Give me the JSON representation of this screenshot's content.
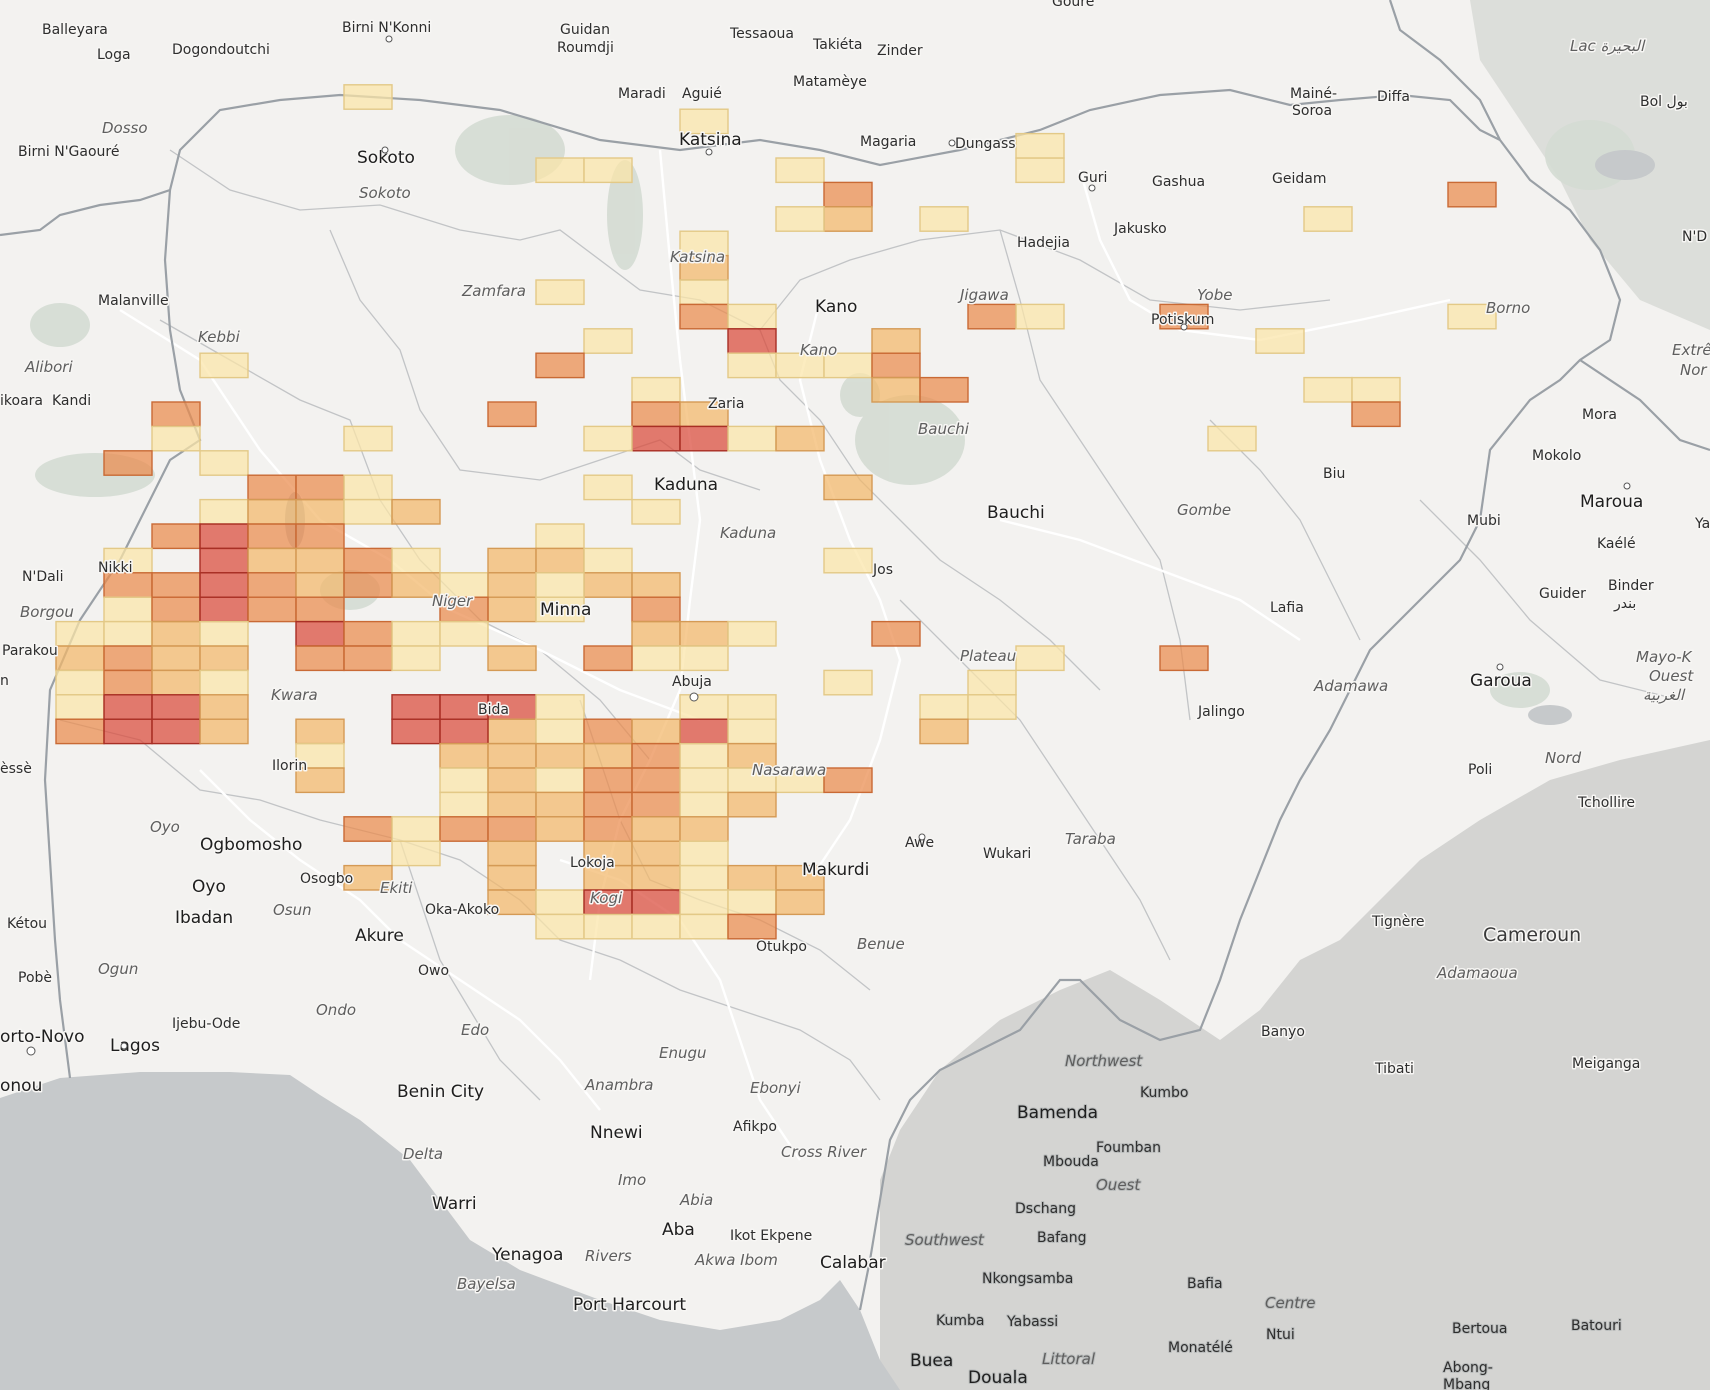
{
  "map": {
    "colors": {
      "land": "#f3f2f0",
      "ocean": "#c6c9cb",
      "terrain": "#b9bcba",
      "park": "#d4dbd3",
      "country_border": "#9aa0a6",
      "admin_border": "#c2c4c6",
      "road": "#ffffff",
      "bin_low": "#fbe5a8",
      "bin_mid": "#f3b769",
      "bin_high": "#ea8a4c",
      "bin_max": "#d9493a"
    },
    "labels": {
      "balleyara": "Balleyara",
      "birni_nkonni": "Birni N'Konni",
      "guidan_roumdji_1": "Guidan",
      "guidan_roumdji_2": "Roumdji",
      "tessaoua": "Tessaoua",
      "takieta": "Takiéta",
      "zinder": "Zinder",
      "goure": "Gouré",
      "lac": "Lac البحيرة",
      "loga": "Loga",
      "dogondoutchi": "Dogondoutchi",
      "maradi": "Maradi",
      "aguie": "Aguié",
      "matameye": "Matamèye",
      "maine_soroa_1": "Mainé-",
      "maine_soroa_2": "Soroa",
      "diffa": "Diffa",
      "bol": "Bol بول",
      "dosso": "Dosso",
      "birni_ngaoure": "Birni N'Gaouré",
      "sokoto_city": "Sokoto",
      "sokoto_state": "Sokoto",
      "katsina_city": "Katsina",
      "magaria": "Magaria",
      "dungass": "Dungass",
      "guri": "Guri",
      "gashua": "Gashua",
      "geidam": "Geidam",
      "jakusko": "Jakusko",
      "hadejia": "Hadejia",
      "katsina_state": "Katsina",
      "zamfara": "Zamfara",
      "kano_city": "Kano",
      "kano_state": "Kano",
      "jigawa": "Jigawa",
      "yobe": "Yobe",
      "potiskum": "Potiskum",
      "borno": "Borno",
      "ndj": "N'D",
      "malanville": "Malanville",
      "kebbi": "Kebbi",
      "alibori": "Alibori",
      "kandi": "Kandi",
      "koara": "ikoara",
      "extreme": "Extrê",
      "nord_cut": "Nor",
      "zaria": "Zaria",
      "bauchi_state": "Bauchi",
      "mora": "Mora",
      "mokolo": "Mokolo",
      "biu": "Biu",
      "maroua": "Maroua",
      "kaele": "Kaélé",
      "kaduna_city": "Kaduna",
      "kaduna_state": "Kaduna",
      "bauchi_city": "Bauchi",
      "gombe": "Gombe",
      "mubi": "Mubi",
      "ya": "Ya",
      "ndali": "N'Dali",
      "nikki": "Nikki",
      "borgou": "Borgou",
      "jos": "Jos",
      "lafia": "Lafia",
      "binder_1": "Binder",
      "binder_2": "بندر",
      "guider": "Guider",
      "niger_state": "Niger",
      "minna": "Minna",
      "plateau": "Plateau",
      "parakou": "Parakou",
      "n_cut": "n",
      "mayo_kebbi_1": "Mayo-K",
      "mayo_kebbi_2": "Ouest",
      "mayo_kebbi_3": "الغربية",
      "adamawa": "Adamawa",
      "garoua": "Garoua",
      "kwara": "Kwara",
      "abuja": "Abuja",
      "bida": "Bida",
      "jalingo": "Jalingo",
      "nord": "Nord",
      "esse": "èssè",
      "ilorin": "Ilorin",
      "nasarawa": "Nasarawa",
      "poli": "Poli",
      "tchollire": "Tchollire",
      "oyo_state": "Oyo",
      "ogbomosho": "Ogbomosho",
      "awe": "Awe",
      "wukari": "Wukari",
      "taraba": "Taraba",
      "osogbo": "Osogbo",
      "lokoja": "Lokoja",
      "oyo_city": "Oyo",
      "ekiti": "Ekiti",
      "makurdi": "Makurdi",
      "osun": "Osun",
      "oka_akoko": "Oka-Akoko",
      "kogi": "Kogi",
      "ketou": "Kétou",
      "ibadan": "Ibadan",
      "tignere": "Tignère",
      "akure": "Akure",
      "otukpo": "Otukpo",
      "benue": "Benue",
      "cameroun": "Cameroun",
      "ogun": "Ogun",
      "owo": "Owo",
      "pobe": "Pobè",
      "adamaoua": "Adamaoua",
      "ondo": "Ondo",
      "ijebu_ode": "Ijebu-Ode",
      "edo": "Edo",
      "banyo": "Banyo",
      "porto_novo": "orto-Novo",
      "lagos": "Lagos",
      "enugu": "Enugu",
      "tibati": "Tibati",
      "meiganga": "Meiganga",
      "northwest": "Northwest",
      "cotonou": "onou",
      "benin_city": "Benin City",
      "anambra": "Anambra",
      "ebonyi": "Ebonyi",
      "kumbo": "Kumbo",
      "bamenda": "Bamenda",
      "nnewi": "Nnewi",
      "afikpo": "Afikpo",
      "delta": "Delta",
      "cross_river": "Cross River",
      "foumban": "Foumban",
      "mbouda": "Mbouda",
      "imo": "Imo",
      "ouest": "Ouest",
      "warri": "Warri",
      "abia": "Abia",
      "dschang": "Dschang",
      "aba": "Aba",
      "ikot_ekpene": "Ikot Ekpene",
      "southwest": "Southwest",
      "bafang": "Bafang",
      "yenagoa": "Yenagoa",
      "rivers": "Rivers",
      "akwa_ibom": "Akwa Ibom",
      "calabar": "Calabar",
      "nkongsamba": "Nkongsamba",
      "bafia": "Bafia",
      "bayelsa": "Bayelsa",
      "port_harcourt": "Port Harcourt",
      "centre": "Centre",
      "kumba": "Kumba",
      "yabassi": "Yabassi",
      "ntui": "Ntui",
      "bertoua": "Bertoua",
      "batouri": "Batouri",
      "buea": "Buea",
      "littoral": "Littoral",
      "monatele": "Monatélé",
      "douala": "Douala",
      "abong_1": "Abong-",
      "abong_2": "Mbang"
    },
    "bins": [
      {
        "c": 7,
        "r": 2,
        "lvl": 0
      },
      {
        "c": 14,
        "r": 3,
        "lvl": 0
      },
      {
        "c": 11,
        "r": 5,
        "lvl": 0
      },
      {
        "c": 12,
        "r": 5,
        "lvl": 0
      },
      {
        "c": 16,
        "r": 5,
        "lvl": 0
      },
      {
        "c": 21,
        "r": 5,
        "lvl": 0
      },
      {
        "c": 21,
        "r": 4,
        "lvl": 0
      },
      {
        "c": 17,
        "r": 6,
        "lvl": 2
      },
      {
        "c": 17,
        "r": 7,
        "lvl": 1
      },
      {
        "c": 16,
        "r": 7,
        "lvl": 0
      },
      {
        "c": 19,
        "r": 7,
        "lvl": 0
      },
      {
        "c": 30,
        "r": 6,
        "lvl": 2
      },
      {
        "c": 27,
        "r": 7,
        "lvl": 0
      },
      {
        "c": 14,
        "r": 8,
        "lvl": 0
      },
      {
        "c": 14,
        "r": 9,
        "lvl": 1
      },
      {
        "c": 11,
        "r": 10,
        "lvl": 0
      },
      {
        "c": 14,
        "r": 10,
        "lvl": 0
      },
      {
        "c": 14,
        "r": 11,
        "lvl": 2
      },
      {
        "c": 15,
        "r": 11,
        "lvl": 0
      },
      {
        "c": 20,
        "r": 11,
        "lvl": 2
      },
      {
        "c": 21,
        "r": 11,
        "lvl": 0
      },
      {
        "c": 24,
        "r": 11,
        "lvl": 2
      },
      {
        "c": 30,
        "r": 11,
        "lvl": 0
      },
      {
        "c": 12,
        "r": 12,
        "lvl": 0
      },
      {
        "c": 15,
        "r": 12,
        "lvl": 3
      },
      {
        "c": 18,
        "r": 12,
        "lvl": 1
      },
      {
        "c": 26,
        "r": 12,
        "lvl": 0
      },
      {
        "c": 15,
        "r": 13,
        "lvl": 0
      },
      {
        "c": 16,
        "r": 13,
        "lvl": 0
      },
      {
        "c": 17,
        "r": 13,
        "lvl": 0
      },
      {
        "c": 18,
        "r": 13,
        "lvl": 2
      },
      {
        "c": 11,
        "r": 13,
        "lvl": 2
      },
      {
        "c": 4,
        "r": 13,
        "lvl": 0
      },
      {
        "c": 13,
        "r": 14,
        "lvl": 0
      },
      {
        "c": 18,
        "r": 14,
        "lvl": 1
      },
      {
        "c": 19,
        "r": 14,
        "lvl": 2
      },
      {
        "c": 27,
        "r": 14,
        "lvl": 0
      },
      {
        "c": 28,
        "r": 14,
        "lvl": 0
      },
      {
        "c": 13,
        "r": 15,
        "lvl": 2
      },
      {
        "c": 14,
        "r": 15,
        "lvl": 1
      },
      {
        "c": 28,
        "r": 15,
        "lvl": 2
      },
      {
        "c": 3,
        "r": 15,
        "lvl": 2
      },
      {
        "c": 10,
        "r": 15,
        "lvl": 2
      },
      {
        "c": 3,
        "r": 16,
        "lvl": 0
      },
      {
        "c": 13,
        "r": 16,
        "lvl": 3
      },
      {
        "c": 14,
        "r": 16,
        "lvl": 3
      },
      {
        "c": 12,
        "r": 16,
        "lvl": 0
      },
      {
        "c": 15,
        "r": 16,
        "lvl": 0
      },
      {
        "c": 16,
        "r": 16,
        "lvl": 1
      },
      {
        "c": 7,
        "r": 16,
        "lvl": 0
      },
      {
        "c": 25,
        "r": 16,
        "lvl": 0
      },
      {
        "c": 2,
        "r": 17,
        "lvl": 2
      },
      {
        "c": 4,
        "r": 17,
        "lvl": 0
      },
      {
        "c": 5,
        "r": 18,
        "lvl": 2
      },
      {
        "c": 6,
        "r": 18,
        "lvl": 2
      },
      {
        "c": 7,
        "r": 18,
        "lvl": 0
      },
      {
        "c": 12,
        "r": 18,
        "lvl": 0
      },
      {
        "c": 17,
        "r": 18,
        "lvl": 1
      },
      {
        "c": 4,
        "r": 19,
        "lvl": 0
      },
      {
        "c": 5,
        "r": 19,
        "lvl": 1
      },
      {
        "c": 6,
        "r": 19,
        "lvl": 1
      },
      {
        "c": 7,
        "r": 19,
        "lvl": 0
      },
      {
        "c": 8,
        "r": 19,
        "lvl": 1
      },
      {
        "c": 13,
        "r": 19,
        "lvl": 0
      },
      {
        "c": 3,
        "r": 20,
        "lvl": 2
      },
      {
        "c": 4,
        "r": 20,
        "lvl": 3
      },
      {
        "c": 5,
        "r": 20,
        "lvl": 2
      },
      {
        "c": 6,
        "r": 20,
        "lvl": 2
      },
      {
        "c": 11,
        "r": 20,
        "lvl": 0
      },
      {
        "c": 2,
        "r": 21,
        "lvl": 0
      },
      {
        "c": 4,
        "r": 21,
        "lvl": 3
      },
      {
        "c": 5,
        "r": 21,
        "lvl": 1
      },
      {
        "c": 6,
        "r": 21,
        "lvl": 1
      },
      {
        "c": 7,
        "r": 21,
        "lvl": 2
      },
      {
        "c": 8,
        "r": 21,
        "lvl": 0
      },
      {
        "c": 10,
        "r": 21,
        "lvl": 1
      },
      {
        "c": 11,
        "r": 21,
        "lvl": 1
      },
      {
        "c": 12,
        "r": 21,
        "lvl": 0
      },
      {
        "c": 12,
        "r": 22,
        "lvl": 1
      },
      {
        "c": 17,
        "r": 21,
        "lvl": 0
      },
      {
        "c": 2,
        "r": 22,
        "lvl": 2
      },
      {
        "c": 3,
        "r": 22,
        "lvl": 2
      },
      {
        "c": 4,
        "r": 22,
        "lvl": 3
      },
      {
        "c": 5,
        "r": 22,
        "lvl": 2
      },
      {
        "c": 6,
        "r": 22,
        "lvl": 1
      },
      {
        "c": 7,
        "r": 22,
        "lvl": 2
      },
      {
        "c": 8,
        "r": 22,
        "lvl": 1
      },
      {
        "c": 9,
        "r": 22,
        "lvl": 0
      },
      {
        "c": 10,
        "r": 22,
        "lvl": 1
      },
      {
        "c": 11,
        "r": 22,
        "lvl": 0
      },
      {
        "c": 13,
        "r": 22,
        "lvl": 1
      },
      {
        "c": 10,
        "r": 23,
        "lvl": 1
      },
      {
        "c": 11,
        "r": 23,
        "lvl": 0
      },
      {
        "c": 13,
        "r": 23,
        "lvl": 2
      },
      {
        "c": 2,
        "r": 23,
        "lvl": 0
      },
      {
        "c": 3,
        "r": 23,
        "lvl": 2
      },
      {
        "c": 4,
        "r": 23,
        "lvl": 3
      },
      {
        "c": 5,
        "r": 23,
        "lvl": 2
      },
      {
        "c": 6,
        "r": 23,
        "lvl": 2
      },
      {
        "c": 9,
        "r": 23,
        "lvl": 2
      },
      {
        "c": 13,
        "r": 24,
        "lvl": 1
      },
      {
        "c": 14,
        "r": 24,
        "lvl": 1
      },
      {
        "c": 18,
        "r": 24,
        "lvl": 2
      },
      {
        "c": 1,
        "r": 24,
        "lvl": 0
      },
      {
        "c": 2,
        "r": 24,
        "lvl": 0
      },
      {
        "c": 3,
        "r": 24,
        "lvl": 1
      },
      {
        "c": 4,
        "r": 24,
        "lvl": 0
      },
      {
        "c": 6,
        "r": 24,
        "lvl": 3
      },
      {
        "c": 7,
        "r": 24,
        "lvl": 2
      },
      {
        "c": 8,
        "r": 24,
        "lvl": 0
      },
      {
        "c": 9,
        "r": 24,
        "lvl": 0
      },
      {
        "c": 13,
        "r": 25,
        "lvl": 0
      },
      {
        "c": 1,
        "r": 25,
        "lvl": 1
      },
      {
        "c": 2,
        "r": 25,
        "lvl": 2
      },
      {
        "c": 3,
        "r": 25,
        "lvl": 1
      },
      {
        "c": 4,
        "r": 25,
        "lvl": 1
      },
      {
        "c": 6,
        "r": 25,
        "lvl": 2
      },
      {
        "c": 7,
        "r": 25,
        "lvl": 2
      },
      {
        "c": 8,
        "r": 25,
        "lvl": 0
      },
      {
        "c": 10,
        "r": 25,
        "lvl": 1
      },
      {
        "c": 12,
        "r": 25,
        "lvl": 2
      },
      {
        "c": 14,
        "r": 25,
        "lvl": 0
      },
      {
        "c": 21,
        "r": 25,
        "lvl": 0
      },
      {
        "c": 24,
        "r": 25,
        "lvl": 2
      },
      {
        "c": 15,
        "r": 24,
        "lvl": 0
      },
      {
        "c": 1,
        "r": 26,
        "lvl": 0
      },
      {
        "c": 2,
        "r": 26,
        "lvl": 2
      },
      {
        "c": 3,
        "r": 26,
        "lvl": 1
      },
      {
        "c": 4,
        "r": 26,
        "lvl": 0
      },
      {
        "c": 17,
        "r": 26,
        "lvl": 0
      },
      {
        "c": 20,
        "r": 26,
        "lvl": 0
      },
      {
        "c": 1,
        "r": 27,
        "lvl": 0
      },
      {
        "c": 2,
        "r": 27,
        "lvl": 3
      },
      {
        "c": 3,
        "r": 27,
        "lvl": 3
      },
      {
        "c": 4,
        "r": 27,
        "lvl": 1
      },
      {
        "c": 10,
        "r": 27,
        "lvl": 3
      },
      {
        "c": 11,
        "r": 27,
        "lvl": 0
      },
      {
        "c": 14,
        "r": 27,
        "lvl": 0
      },
      {
        "c": 15,
        "r": 27,
        "lvl": 0
      },
      {
        "c": 19,
        "r": 27,
        "lvl": 0
      },
      {
        "c": 20,
        "r": 27,
        "lvl": 0
      },
      {
        "c": 1,
        "r": 28,
        "lvl": 2
      },
      {
        "c": 2,
        "r": 28,
        "lvl": 3
      },
      {
        "c": 3,
        "r": 28,
        "lvl": 3
      },
      {
        "c": 4,
        "r": 28,
        "lvl": 1
      },
      {
        "c": 6,
        "r": 28,
        "lvl": 1
      },
      {
        "c": 10,
        "r": 28,
        "lvl": 1
      },
      {
        "c": 11,
        "r": 28,
        "lvl": 0
      },
      {
        "c": 14,
        "r": 28,
        "lvl": 3
      },
      {
        "c": 15,
        "r": 28,
        "lvl": 0
      },
      {
        "c": 19,
        "r": 28,
        "lvl": 1
      },
      {
        "c": 8,
        "r": 27,
        "lvl": 3
      },
      {
        "c": 9,
        "r": 27,
        "lvl": 3
      },
      {
        "c": 8,
        "r": 28,
        "lvl": 3
      },
      {
        "c": 9,
        "r": 28,
        "lvl": 3
      },
      {
        "c": 12,
        "r": 28,
        "lvl": 2
      },
      {
        "c": 13,
        "r": 28,
        "lvl": 1
      },
      {
        "c": 6,
        "r": 29,
        "lvl": 0
      },
      {
        "c": 9,
        "r": 29,
        "lvl": 1
      },
      {
        "c": 10,
        "r": 29,
        "lvl": 1
      },
      {
        "c": 11,
        "r": 29,
        "lvl": 1
      },
      {
        "c": 12,
        "r": 29,
        "lvl": 1
      },
      {
        "c": 13,
        "r": 29,
        "lvl": 2
      },
      {
        "c": 14,
        "r": 29,
        "lvl": 0
      },
      {
        "c": 15,
        "r": 29,
        "lvl": 1
      },
      {
        "c": 6,
        "r": 30,
        "lvl": 1
      },
      {
        "c": 9,
        "r": 30,
        "lvl": 0
      },
      {
        "c": 10,
        "r": 30,
        "lvl": 1
      },
      {
        "c": 11,
        "r": 30,
        "lvl": 0
      },
      {
        "c": 12,
        "r": 30,
        "lvl": 2
      },
      {
        "c": 13,
        "r": 30,
        "lvl": 2
      },
      {
        "c": 14,
        "r": 30,
        "lvl": 0
      },
      {
        "c": 15,
        "r": 30,
        "lvl": 0
      },
      {
        "c": 16,
        "r": 30,
        "lvl": 0
      },
      {
        "c": 17,
        "r": 30,
        "lvl": 2
      },
      {
        "c": 9,
        "r": 31,
        "lvl": 0
      },
      {
        "c": 10,
        "r": 31,
        "lvl": 1
      },
      {
        "c": 11,
        "r": 31,
        "lvl": 1
      },
      {
        "c": 12,
        "r": 31,
        "lvl": 2
      },
      {
        "c": 13,
        "r": 31,
        "lvl": 2
      },
      {
        "c": 14,
        "r": 31,
        "lvl": 0
      },
      {
        "c": 15,
        "r": 31,
        "lvl": 1
      },
      {
        "c": 7,
        "r": 32,
        "lvl": 2
      },
      {
        "c": 8,
        "r": 32,
        "lvl": 0
      },
      {
        "c": 9,
        "r": 32,
        "lvl": 2
      },
      {
        "c": 10,
        "r": 32,
        "lvl": 2
      },
      {
        "c": 11,
        "r": 32,
        "lvl": 1
      },
      {
        "c": 12,
        "r": 32,
        "lvl": 2
      },
      {
        "c": 13,
        "r": 32,
        "lvl": 1
      },
      {
        "c": 14,
        "r": 32,
        "lvl": 1
      },
      {
        "c": 8,
        "r": 33,
        "lvl": 0
      },
      {
        "c": 10,
        "r": 33,
        "lvl": 1
      },
      {
        "c": 12,
        "r": 33,
        "lvl": 1
      },
      {
        "c": 13,
        "r": 33,
        "lvl": 1
      },
      {
        "c": 14,
        "r": 33,
        "lvl": 0
      },
      {
        "c": 7,
        "r": 34,
        "lvl": 1
      },
      {
        "c": 10,
        "r": 34,
        "lvl": 1
      },
      {
        "c": 12,
        "r": 34,
        "lvl": 1
      },
      {
        "c": 13,
        "r": 34,
        "lvl": 1
      },
      {
        "c": 14,
        "r": 34,
        "lvl": 0
      },
      {
        "c": 15,
        "r": 34,
        "lvl": 1
      },
      {
        "c": 16,
        "r": 34,
        "lvl": 1
      },
      {
        "c": 10,
        "r": 35,
        "lvl": 1
      },
      {
        "c": 11,
        "r": 35,
        "lvl": 0
      },
      {
        "c": 12,
        "r": 35,
        "lvl": 3
      },
      {
        "c": 13,
        "r": 35,
        "lvl": 3
      },
      {
        "c": 14,
        "r": 35,
        "lvl": 0
      },
      {
        "c": 15,
        "r": 35,
        "lvl": 0
      },
      {
        "c": 16,
        "r": 35,
        "lvl": 1
      },
      {
        "c": 11,
        "r": 36,
        "lvl": 0
      },
      {
        "c": 12,
        "r": 36,
        "lvl": 0
      },
      {
        "c": 13,
        "r": 36,
        "lvl": 0
      },
      {
        "c": 14,
        "r": 36,
        "lvl": 0
      },
      {
        "c": 15,
        "r": 36,
        "lvl": 2
      }
    ]
  }
}
